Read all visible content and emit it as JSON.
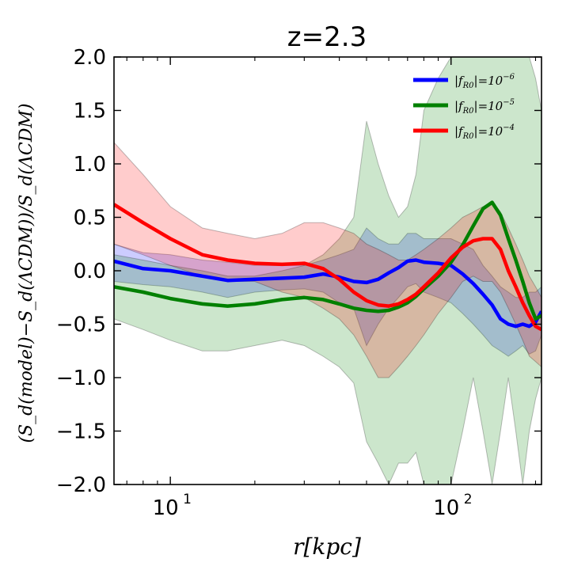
{
  "chart_data": {
    "type": "line",
    "title": "z=2.3",
    "xlabel": "r[kpc]",
    "ylabel": "(S_d(model)−S_d(ΛCDM))/S_d(ΛCDM)",
    "xscale": "log",
    "xlim": [
      6.3,
      210
    ],
    "ylim": [
      -2.0,
      2.0
    ],
    "yticks": [
      -2.0,
      -1.5,
      -1.0,
      -0.5,
      0.0,
      0.5,
      1.0,
      1.5,
      2.0
    ],
    "ytick_labels": [
      "−2.0",
      "−1.5",
      "−1.0",
      "−0.5",
      "0.0",
      "0.5",
      "1.0",
      "1.5",
      "2.0"
    ],
    "xticks": [
      10,
      100
    ],
    "xtick_labels": [
      {
        "base": "10",
        "exp": "1"
      },
      {
        "base": "10",
        "exp": "2"
      }
    ],
    "legend_position": "top-right",
    "series": [
      {
        "name": "|f_R0|=10^-6",
        "legend": {
          "prefix": "|f",
          "sub": "R0",
          "mid": "|=10",
          "sup": "−6"
        },
        "color": "#0000ff",
        "x": [
          6.3,
          8,
          10,
          13,
          16,
          20,
          25,
          30,
          35,
          40,
          45,
          50,
          55,
          60,
          65,
          70,
          75,
          80,
          90,
          100,
          110,
          120,
          130,
          140,
          150,
          160,
          170,
          180,
          190,
          200,
          210
        ],
        "y": [
          0.09,
          0.02,
          0.0,
          -0.05,
          -0.09,
          -0.08,
          -0.07,
          -0.06,
          -0.03,
          -0.06,
          -0.1,
          -0.11,
          -0.08,
          -0.02,
          0.03,
          0.09,
          0.1,
          0.08,
          0.07,
          0.05,
          -0.03,
          -0.12,
          -0.22,
          -0.32,
          -0.45,
          -0.5,
          -0.52,
          -0.5,
          -0.52,
          -0.48,
          -0.38
        ],
        "lower": [
          -0.1,
          -0.13,
          -0.15,
          -0.2,
          -0.25,
          -0.2,
          -0.18,
          -0.17,
          -0.2,
          -0.3,
          -0.35,
          -0.7,
          -0.5,
          -0.35,
          -0.25,
          -0.15,
          -0.12,
          -0.2,
          -0.25,
          -0.3,
          -0.4,
          -0.5,
          -0.6,
          -0.7,
          -0.75,
          -0.8,
          -0.75,
          -0.7,
          -0.78,
          -0.75,
          -0.6
        ],
        "upper": [
          0.25,
          0.17,
          0.15,
          0.1,
          0.08,
          0.05,
          0.05,
          0.05,
          0.1,
          0.15,
          0.2,
          0.4,
          0.3,
          0.25,
          0.25,
          0.35,
          0.35,
          0.3,
          0.3,
          0.3,
          0.25,
          0.2,
          0.05,
          -0.05,
          -0.15,
          -0.2,
          -0.25,
          -0.25,
          -0.2,
          -0.2,
          -0.15
        ]
      },
      {
        "name": "|f_R0|=10^-5",
        "legend": {
          "prefix": "|f",
          "sub": "R0",
          "mid": "|=10",
          "sup": "−5"
        },
        "color": "#008000",
        "x": [
          6.3,
          8,
          10,
          13,
          16,
          20,
          25,
          30,
          35,
          40,
          45,
          50,
          55,
          60,
          65,
          70,
          75,
          80,
          90,
          100,
          110,
          120,
          130,
          140,
          150,
          160,
          170,
          180,
          190,
          200,
          210
        ],
        "y": [
          -0.15,
          -0.2,
          -0.26,
          -0.31,
          -0.33,
          -0.31,
          -0.27,
          -0.25,
          -0.27,
          -0.31,
          -0.35,
          -0.37,
          -0.38,
          -0.37,
          -0.34,
          -0.3,
          -0.24,
          -0.17,
          -0.05,
          0.08,
          0.24,
          0.42,
          0.58,
          0.64,
          0.52,
          0.3,
          0.1,
          -0.1,
          -0.3,
          -0.45,
          -0.42
        ],
        "lower": [
          -0.45,
          -0.55,
          -0.65,
          -0.75,
          -0.75,
          -0.7,
          -0.65,
          -0.7,
          -0.8,
          -0.9,
          -1.05,
          -1.6,
          -1.8,
          -2.0,
          -1.8,
          -1.8,
          -1.7,
          -2.0,
          -2.0,
          -2.0,
          -1.5,
          -1.0,
          -1.5,
          -2.0,
          -1.5,
          -1.0,
          -1.5,
          -2.0,
          -1.5,
          -1.2,
          -1.0
        ],
        "upper": [
          0.15,
          0.1,
          0.05,
          0.0,
          -0.05,
          -0.05,
          0.0,
          0.05,
          0.15,
          0.3,
          0.5,
          1.4,
          1.0,
          0.7,
          0.5,
          0.6,
          0.9,
          1.5,
          1.8,
          2.0,
          2.0,
          2.0,
          2.0,
          2.0,
          2.0,
          2.0,
          2.0,
          2.0,
          2.0,
          1.8,
          1.5
        ]
      },
      {
        "name": "|f_R0|=10^-4",
        "legend": {
          "prefix": "|f",
          "sub": "R0",
          "mid": "|=10",
          "sup": "−4"
        },
        "color": "#ff0000",
        "x": [
          6.3,
          8,
          10,
          13,
          16,
          20,
          25,
          30,
          35,
          40,
          45,
          50,
          55,
          60,
          65,
          70,
          75,
          80,
          90,
          100,
          110,
          120,
          130,
          140,
          150,
          160,
          170,
          180,
          190,
          200,
          210
        ],
        "y": [
          0.62,
          0.45,
          0.3,
          0.15,
          0.1,
          0.07,
          0.06,
          0.07,
          0.02,
          -0.08,
          -0.2,
          -0.28,
          -0.32,
          -0.33,
          -0.31,
          -0.27,
          -0.22,
          -0.15,
          -0.02,
          0.12,
          0.22,
          0.28,
          0.3,
          0.3,
          0.2,
          0.0,
          -0.15,
          -0.3,
          -0.42,
          -0.52,
          -0.55
        ],
        "lower": [
          0.25,
          0.15,
          0.05,
          -0.05,
          -0.1,
          -0.1,
          -0.2,
          -0.25,
          -0.35,
          -0.45,
          -0.6,
          -0.8,
          -1.0,
          -1.0,
          -0.9,
          -0.8,
          -0.7,
          -0.6,
          -0.4,
          -0.25,
          -0.1,
          -0.05,
          -0.1,
          -0.1,
          -0.2,
          -0.35,
          -0.5,
          -0.65,
          -0.8,
          -0.85,
          -0.9
        ],
        "upper": [
          1.2,
          0.9,
          0.6,
          0.4,
          0.35,
          0.3,
          0.35,
          0.45,
          0.45,
          0.4,
          0.35,
          0.25,
          0.2,
          0.15,
          0.1,
          0.1,
          0.15,
          0.2,
          0.3,
          0.4,
          0.5,
          0.55,
          0.6,
          0.65,
          0.55,
          0.4,
          0.25,
          0.1,
          -0.05,
          -0.15,
          -0.25
        ]
      }
    ]
  }
}
